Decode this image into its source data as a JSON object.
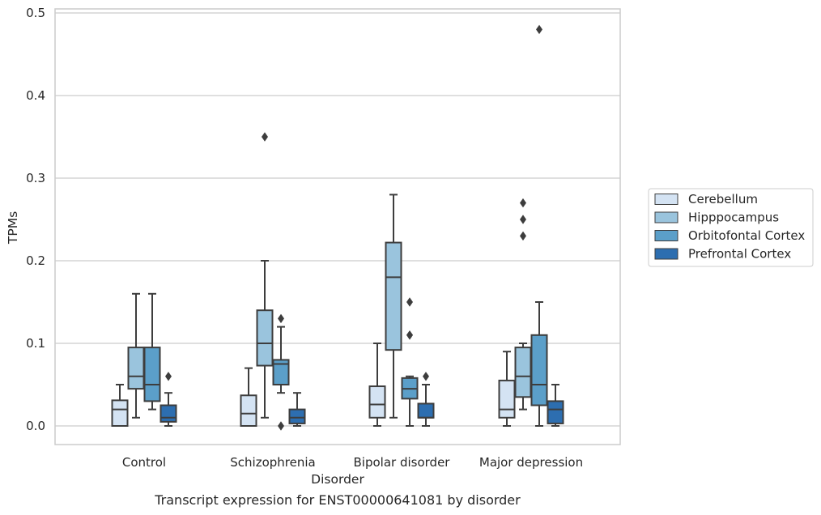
{
  "chart_data": {
    "type": "box",
    "caption": "Transcript expression for ENST00000641081 by disorder",
    "xlabel": "Disorder",
    "ylabel": "TPMs",
    "ylim": [
      -0.023,
      0.505
    ],
    "yticks": [
      0.0,
      0.1,
      0.2,
      0.3,
      0.4,
      0.5
    ],
    "ytick_labels": [
      "0.0",
      "0.1",
      "0.2",
      "0.3",
      "0.4",
      "0.5"
    ],
    "grid": "horizontal",
    "legend_position": "right",
    "categories": [
      "Control",
      "Schizophrenia",
      "Bipolar disorder",
      "Major depression"
    ],
    "series": [
      {
        "name": "Cerebellum",
        "color": "#d4e3f3",
        "boxes": [
          {
            "whislo": 0.0,
            "q1": 0.0,
            "med": 0.02,
            "q3": 0.031,
            "whishi": 0.05,
            "fliers": []
          },
          {
            "whislo": 0.0,
            "q1": 0.0,
            "med": 0.015,
            "q3": 0.037,
            "whishi": 0.07,
            "fliers": []
          },
          {
            "whislo": 0.0,
            "q1": 0.01,
            "med": 0.026,
            "q3": 0.048,
            "whishi": 0.1,
            "fliers": []
          },
          {
            "whislo": 0.0,
            "q1": 0.01,
            "med": 0.02,
            "q3": 0.055,
            "whishi": 0.09,
            "fliers": []
          }
        ]
      },
      {
        "name": "Hipppocampus",
        "color": "#9ac4dd",
        "boxes": [
          {
            "whislo": 0.01,
            "q1": 0.045,
            "med": 0.06,
            "q3": 0.095,
            "whishi": 0.16,
            "fliers": []
          },
          {
            "whislo": 0.01,
            "q1": 0.073,
            "med": 0.1,
            "q3": 0.14,
            "whishi": 0.2,
            "fliers": [
              0.35
            ]
          },
          {
            "whislo": 0.01,
            "q1": 0.092,
            "med": 0.18,
            "q3": 0.222,
            "whishi": 0.28,
            "fliers": []
          },
          {
            "whislo": 0.02,
            "q1": 0.035,
            "med": 0.06,
            "q3": 0.095,
            "whishi": 0.1,
            "fliers": [
              0.23,
              0.25,
              0.27
            ]
          }
        ]
      },
      {
        "name": "Orbitofontal Cortex",
        "color": "#5b9fc9",
        "boxes": [
          {
            "whislo": 0.02,
            "q1": 0.03,
            "med": 0.05,
            "q3": 0.095,
            "whishi": 0.16,
            "fliers": []
          },
          {
            "whislo": 0.04,
            "q1": 0.05,
            "med": 0.075,
            "q3": 0.08,
            "whishi": 0.12,
            "fliers": [
              0.0,
              0.13
            ]
          },
          {
            "whislo": 0.0,
            "q1": 0.033,
            "med": 0.045,
            "q3": 0.058,
            "whishi": 0.06,
            "fliers": [
              0.11,
              0.11,
              0.15
            ]
          },
          {
            "whislo": 0.0,
            "q1": 0.025,
            "med": 0.05,
            "q3": 0.11,
            "whishi": 0.15,
            "fliers": [
              0.48
            ]
          }
        ]
      },
      {
        "name": "Prefrontal Cortex",
        "color": "#2d6eb0",
        "boxes": [
          {
            "whislo": 0.0,
            "q1": 0.005,
            "med": 0.01,
            "q3": 0.025,
            "whishi": 0.04,
            "fliers": [
              0.06
            ]
          },
          {
            "whislo": 0.0,
            "q1": 0.003,
            "med": 0.01,
            "q3": 0.02,
            "whishi": 0.04,
            "fliers": []
          },
          {
            "whislo": 0.0,
            "q1": 0.01,
            "med": 0.01,
            "q3": 0.027,
            "whishi": 0.05,
            "fliers": [
              0.06
            ]
          },
          {
            "whislo": 0.0,
            "q1": 0.003,
            "med": 0.02,
            "q3": 0.03,
            "whishi": 0.05,
            "fliers": []
          }
        ]
      }
    ]
  }
}
